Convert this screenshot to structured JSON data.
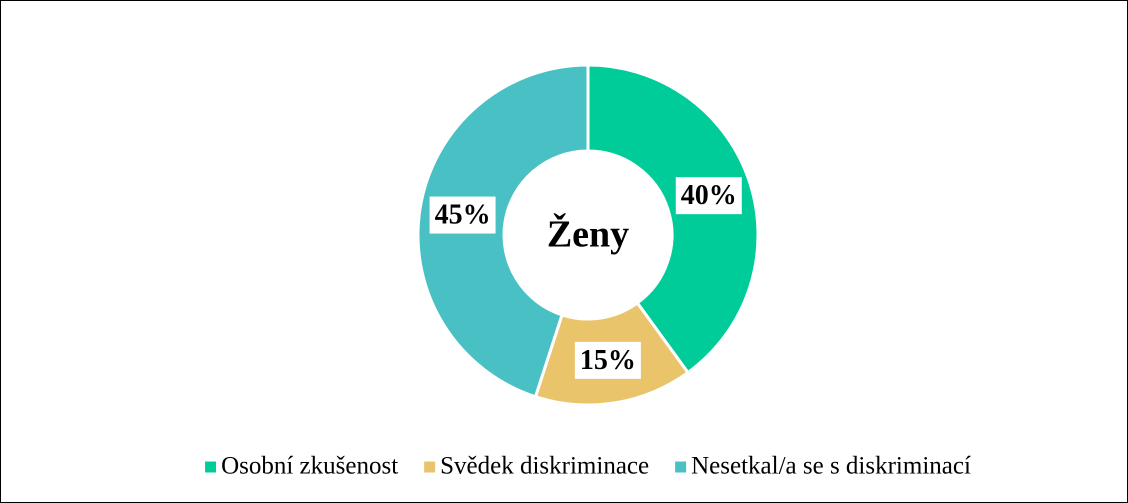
{
  "chart_data": {
    "type": "donut",
    "title": "Ženy",
    "categories": [
      "Osobní zkušenost",
      "Svědek diskriminace",
      "Nesetkal/a se s diskriminací"
    ],
    "values": [
      40,
      15,
      45
    ],
    "value_labels": [
      "40%",
      "15%",
      "45%"
    ],
    "colors": [
      "#00cc9a",
      "#e9c46a",
      "#48c0c4"
    ],
    "legend": "bottom"
  }
}
